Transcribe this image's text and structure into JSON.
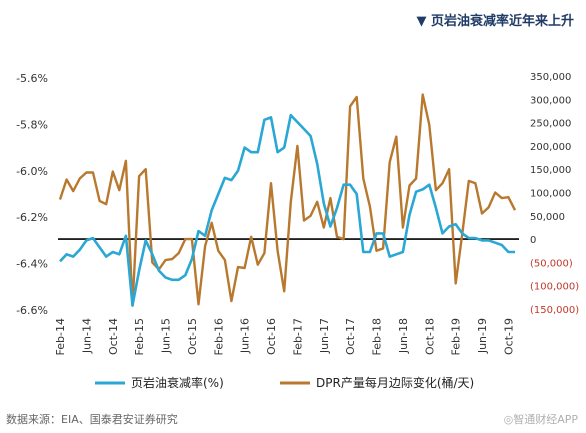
{
  "title": "▼ 页岩油衰减率近年来上升",
  "source": "数据来源：EIA、国泰君安证券研究",
  "watermark": "◎智通财经APP",
  "colors": {
    "series1": "#2aa7d4",
    "series2": "#b8782e",
    "negative_tick": "#c0392b",
    "baseline": "#000000"
  },
  "chart_data": {
    "type": "line",
    "title": "",
    "x_ticks": [
      "Feb-14",
      "Jun-14",
      "Oct-14",
      "Feb-15",
      "Jun-15",
      "Oct-15",
      "Feb-16",
      "Jun-16",
      "Oct-16",
      "Feb-17",
      "Jun-17",
      "Oct-17",
      "Feb-18",
      "Jun-18",
      "Oct-18",
      "Feb-19",
      "Jun-19",
      "Oct-19"
    ],
    "y_left": {
      "min": -6.6,
      "max": -5.6,
      "ticks": [
        "-5.6%",
        "-5.8%",
        "-6.0%",
        "-6.2%",
        "-6.4%",
        "-6.6%"
      ]
    },
    "y_right": {
      "min": -150000,
      "max": 350000,
      "ticks": [
        "350,000",
        "300,000",
        "250,000",
        "200,000",
        "150,000",
        "100,000",
        "50,000",
        "0",
        "(50,000)",
        "(100,000)",
        "(150,000)"
      ]
    },
    "series": [
      {
        "name": "页岩油衰减率(%)",
        "axis": "left",
        "x": [
          0,
          1,
          2,
          3,
          4,
          5,
          6,
          7,
          8,
          9,
          10,
          11,
          12,
          13,
          14,
          15,
          16,
          17,
          18,
          19,
          20,
          21,
          22,
          23,
          24,
          25,
          26,
          27,
          28,
          29,
          30,
          31,
          32,
          33,
          34,
          35,
          36,
          37,
          38,
          39,
          40,
          41,
          42,
          43,
          44,
          45,
          46,
          47,
          48,
          49,
          50,
          51,
          52,
          53,
          54,
          55,
          56,
          57,
          58,
          59,
          60,
          61,
          62,
          63,
          64,
          65,
          66,
          67,
          68,
          69
        ],
        "values": [
          -6.39,
          -6.36,
          -6.37,
          -6.34,
          -6.3,
          -6.29,
          -6.33,
          -6.37,
          -6.35,
          -6.36,
          -6.28,
          -6.58,
          -6.43,
          -6.3,
          -6.36,
          -6.43,
          -6.46,
          -6.47,
          -6.47,
          -6.45,
          -6.38,
          -6.26,
          -6.28,
          -6.17,
          -6.1,
          -6.03,
          -6.04,
          -6.0,
          -5.9,
          -5.92,
          -5.92,
          -5.78,
          -5.77,
          -5.92,
          -5.9,
          -5.76,
          -5.79,
          -5.82,
          -5.85,
          -5.97,
          -6.14,
          -6.24,
          -6.16,
          -6.06,
          -6.06,
          -6.1,
          -6.35,
          -6.35,
          -6.27,
          -6.27,
          -6.37,
          -6.36,
          -6.35,
          -6.19,
          -6.09,
          -6.08,
          -6.06,
          -6.16,
          -6.27,
          -6.24,
          -6.23,
          -6.27,
          -6.29,
          -6.29,
          -6.3,
          -6.3,
          -6.31,
          -6.32,
          -6.35,
          -6.35
        ]
      },
      {
        "name": "DPR产量每月边际变化(桶/天)",
        "axis": "right",
        "x": [
          0,
          1,
          2,
          3,
          4,
          5,
          6,
          7,
          8,
          9,
          10,
          11,
          12,
          13,
          14,
          15,
          16,
          17,
          18,
          19,
          20,
          21,
          22,
          23,
          24,
          25,
          26,
          27,
          28,
          29,
          30,
          31,
          32,
          33,
          34,
          35,
          36,
          37,
          38,
          39,
          40,
          41,
          42,
          43,
          44,
          45,
          46,
          47,
          48,
          49,
          50,
          51,
          52,
          53,
          54,
          55,
          56,
          57,
          58,
          59,
          60,
          61,
          62,
          63,
          64,
          65,
          66,
          67,
          68,
          69
        ],
        "values": [
          85000,
          128000,
          103000,
          130000,
          143000,
          143000,
          82000,
          75000,
          145000,
          105000,
          168000,
          -143000,
          135000,
          150000,
          -50000,
          -65000,
          -45000,
          -43000,
          -30000,
          0,
          0,
          -140000,
          -15000,
          35000,
          -25000,
          -45000,
          -133000,
          -60000,
          -62000,
          5000,
          -55000,
          -30000,
          120000,
          -25000,
          -112000,
          80000,
          200000,
          40000,
          50000,
          80000,
          25000,
          88000,
          5000,
          0,
          285000,
          305000,
          130000,
          70000,
          -25000,
          -20000,
          165000,
          220000,
          25000,
          115000,
          130000,
          310000,
          245000,
          105000,
          120000,
          150000,
          -95000,
          10000,
          125000,
          120000,
          55000,
          68000,
          100000,
          88000,
          90000,
          62000
        ]
      }
    ],
    "baseline": 0
  }
}
